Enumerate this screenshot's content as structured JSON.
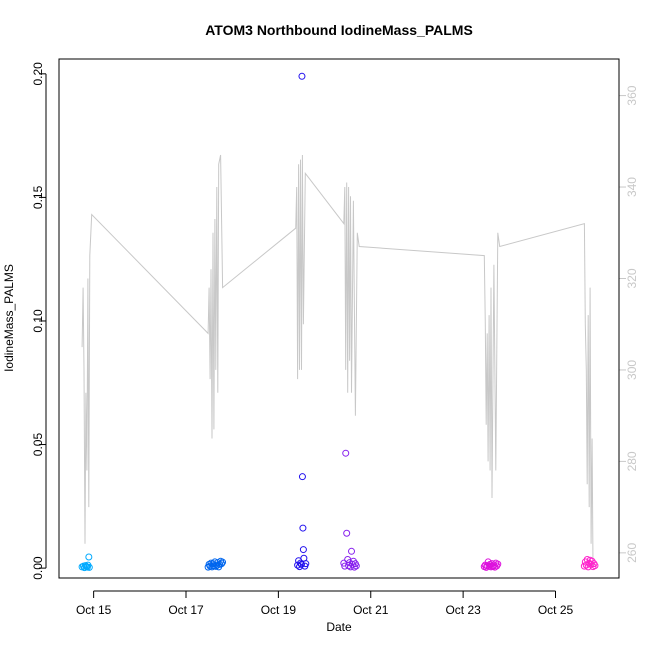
{
  "chart_data": {
    "type": "scatter",
    "title": "ATOM3 Northbound IodineMass_PALMS",
    "xlabel": "Date",
    "ylabel": "IodineMass_PALMS",
    "xlim": [
      "2017-10-14T06:00",
      "2017-10-26T09:00"
    ],
    "ylim": [
      -0.004,
      0.206
    ],
    "y2lim": [
      254.5,
      368
    ],
    "x_ticks": [
      {
        "date": "2017-10-15T00:00",
        "label": "Oct 15"
      },
      {
        "date": "2017-10-17T00:00",
        "label": "Oct 17"
      },
      {
        "date": "2017-10-19T00:00",
        "label": "Oct 19"
      },
      {
        "date": "2017-10-21T00:00",
        "label": "Oct 21"
      },
      {
        "date": "2017-10-23T00:00",
        "label": "Oct 23"
      },
      {
        "date": "2017-10-25T00:00",
        "label": "Oct 25"
      }
    ],
    "y_ticks": [
      {
        "value": 0.0,
        "label": "0.00"
      },
      {
        "value": 0.05,
        "label": "0.05"
      },
      {
        "value": 0.1,
        "label": "0.10"
      },
      {
        "value": 0.15,
        "label": "0.15"
      },
      {
        "value": 0.2,
        "label": "0.20"
      }
    ],
    "y2_ticks": [
      {
        "value": 260,
        "label": "260"
      },
      {
        "value": 280,
        "label": "280"
      },
      {
        "value": 300,
        "label": "300"
      },
      {
        "value": 320,
        "label": "320"
      },
      {
        "value": 340,
        "label": "340"
      },
      {
        "value": 360,
        "label": "360"
      }
    ],
    "line_series": {
      "axis": "right",
      "color": "#c8c8c8",
      "points": [
        [
          "2017-10-14T18:00",
          305
        ],
        [
          "2017-10-14T18:30",
          318
        ],
        [
          "2017-10-14T19:00",
          300
        ],
        [
          "2017-10-14T19:30",
          262
        ],
        [
          "2017-10-14T20:00",
          295
        ],
        [
          "2017-10-14T20:30",
          278
        ],
        [
          "2017-10-14T21:00",
          320
        ],
        [
          "2017-10-14T21:30",
          270
        ],
        [
          "2017-10-14T22:00",
          325
        ],
        [
          "2017-10-14T23:00",
          334
        ],
        [
          "2017-10-17T11:30",
          308
        ],
        [
          "2017-10-17T12:00",
          318
        ],
        [
          "2017-10-17T12:30",
          298
        ],
        [
          "2017-10-17T13:00",
          322
        ],
        [
          "2017-10-17T13:30",
          285
        ],
        [
          "2017-10-17T14:00",
          330
        ],
        [
          "2017-10-17T14:30",
          287
        ],
        [
          "2017-10-17T15:00",
          333
        ],
        [
          "2017-10-17T15:30",
          300
        ],
        [
          "2017-10-17T16:00",
          340
        ],
        [
          "2017-10-17T16:30",
          295
        ],
        [
          "2017-10-17T17:00",
          345
        ],
        [
          "2017-10-17T18:00",
          347
        ],
        [
          "2017-10-17T19:00",
          318
        ],
        [
          "2017-10-19T09:00",
          331
        ],
        [
          "2017-10-19T09:30",
          340
        ],
        [
          "2017-10-19T10:00",
          298
        ],
        [
          "2017-10-19T10:30",
          345
        ],
        [
          "2017-10-19T11:00",
          300
        ],
        [
          "2017-10-19T11:30",
          346
        ],
        [
          "2017-10-19T12:00",
          300
        ],
        [
          "2017-10-19T12:30",
          347
        ],
        [
          "2017-10-19T13:00",
          310
        ],
        [
          "2017-10-19T14:00",
          343
        ],
        [
          "2017-10-20T10:00",
          332
        ],
        [
          "2017-10-20T10:30",
          340
        ],
        [
          "2017-10-20T11:00",
          300
        ],
        [
          "2017-10-20T11:30",
          341
        ],
        [
          "2017-10-20T12:00",
          295
        ],
        [
          "2017-10-20T12:30",
          340
        ],
        [
          "2017-10-20T13:00",
          302
        ],
        [
          "2017-10-20T13:30",
          338
        ],
        [
          "2017-10-20T14:00",
          295
        ],
        [
          "2017-10-20T15:00",
          337
        ],
        [
          "2017-10-20T16:00",
          290
        ],
        [
          "2017-10-20T17:00",
          330
        ],
        [
          "2017-10-20T18:00",
          327
        ],
        [
          "2017-10-23T11:00",
          325
        ],
        [
          "2017-10-23T11:30",
          310
        ],
        [
          "2017-10-23T12:00",
          288
        ],
        [
          "2017-10-23T12:30",
          308
        ],
        [
          "2017-10-23T13:00",
          280
        ],
        [
          "2017-10-23T13:30",
          312
        ],
        [
          "2017-10-23T14:00",
          278
        ],
        [
          "2017-10-23T14:30",
          318
        ],
        [
          "2017-10-23T15:00",
          272
        ],
        [
          "2017-10-23T16:00",
          323
        ],
        [
          "2017-10-23T17:00",
          278
        ],
        [
          "2017-10-23T18:00",
          330
        ],
        [
          "2017-10-23T19:00",
          327
        ],
        [
          "2017-10-25T15:00",
          332
        ],
        [
          "2017-10-25T15:30",
          310
        ],
        [
          "2017-10-25T16:00",
          300
        ],
        [
          "2017-10-25T16:30",
          275
        ],
        [
          "2017-10-25T17:00",
          312
        ],
        [
          "2017-10-25T17:30",
          270
        ],
        [
          "2017-10-25T18:00",
          318
        ],
        [
          "2017-10-25T18:30",
          262
        ],
        [
          "2017-10-25T19:00",
          285
        ],
        [
          "2017-10-25T19:30",
          257
        ]
      ]
    },
    "series": [
      {
        "color": "#00aaff",
        "points": [
          [
            "2017-10-14T18:00",
            0.0005
          ],
          [
            "2017-10-14T18:45",
            0.0008
          ],
          [
            "2017-10-14T19:15",
            0.0002
          ],
          [
            "2017-10-14T19:45",
            0.001
          ],
          [
            "2017-10-14T20:15",
            0.0006
          ],
          [
            "2017-10-14T20:45",
            0.0004
          ],
          [
            "2017-10-14T21:00",
            0.0012
          ],
          [
            "2017-10-14T21:30",
            0.0045
          ],
          [
            "2017-10-14T21:45",
            0.0003
          ]
        ]
      },
      {
        "color": "#0066ee",
        "points": [
          [
            "2017-10-17T11:30",
            0.0004
          ],
          [
            "2017-10-17T12:00",
            0.0015
          ],
          [
            "2017-10-17T12:30",
            0.0008
          ],
          [
            "2017-10-17T13:00",
            0.002
          ],
          [
            "2017-10-17T13:30",
            0.0005
          ],
          [
            "2017-10-17T14:00",
            0.0018
          ],
          [
            "2017-10-17T14:30",
            0.0009
          ],
          [
            "2017-10-17T15:00",
            0.0025
          ],
          [
            "2017-10-17T15:30",
            0.0007
          ],
          [
            "2017-10-17T16:00",
            0.0012
          ],
          [
            "2017-10-17T16:30",
            0.0022
          ],
          [
            "2017-10-17T17:00",
            0.0005
          ],
          [
            "2017-10-17T17:30",
            0.0015
          ],
          [
            "2017-10-17T18:00",
            0.0028
          ],
          [
            "2017-10-17T18:30",
            0.0018
          ],
          [
            "2017-10-17T19:00",
            0.0024
          ]
        ]
      },
      {
        "color": "#2211ee",
        "points": [
          [
            "2017-10-19T10:00",
            0.0012
          ],
          [
            "2017-10-19T10:30",
            0.003
          ],
          [
            "2017-10-19T11:00",
            0.0006
          ],
          [
            "2017-10-19T11:30",
            0.002
          ],
          [
            "2017-10-19T12:00",
            0.0015
          ],
          [
            "2017-10-19T12:15",
            0.199
          ],
          [
            "2017-10-19T12:30",
            0.037
          ],
          [
            "2017-10-19T12:45",
            0.0162
          ],
          [
            "2017-10-19T13:00",
            0.0075
          ],
          [
            "2017-10-19T13:15",
            0.004
          ],
          [
            "2017-10-19T13:45",
            0.0008
          ],
          [
            "2017-10-19T14:15",
            0.0018
          ]
        ]
      },
      {
        "color": "#8822ee",
        "points": [
          [
            "2017-10-20T10:00",
            0.002
          ],
          [
            "2017-10-20T10:30",
            0.0008
          ],
          [
            "2017-10-20T11:00",
            0.0465
          ],
          [
            "2017-10-20T11:30",
            0.0141
          ],
          [
            "2017-10-20T12:00",
            0.0035
          ],
          [
            "2017-10-20T12:30",
            0.001
          ],
          [
            "2017-10-20T13:00",
            0.0022
          ],
          [
            "2017-10-20T13:30",
            0.0005
          ],
          [
            "2017-10-20T14:00",
            0.0068
          ],
          [
            "2017-10-20T14:30",
            0.0015
          ],
          [
            "2017-10-20T15:00",
            0.0028
          ],
          [
            "2017-10-20T15:30",
            0.0004
          ],
          [
            "2017-10-20T16:00",
            0.0018
          ],
          [
            "2017-10-20T16:30",
            0.0009
          ]
        ]
      },
      {
        "color": "#dd11dd",
        "points": [
          [
            "2017-10-23T11:00",
            0.0006
          ],
          [
            "2017-10-23T11:30",
            0.0012
          ],
          [
            "2017-10-23T12:00",
            0.0003
          ],
          [
            "2017-10-23T12:30",
            0.0009
          ],
          [
            "2017-10-23T13:00",
            0.0025
          ],
          [
            "2017-10-23T13:30",
            0.0008
          ],
          [
            "2017-10-23T14:00",
            0.0015
          ],
          [
            "2017-10-23T14:30",
            0.0005
          ],
          [
            "2017-10-23T15:00",
            0.0018
          ],
          [
            "2017-10-23T15:30",
            0.0007
          ],
          [
            "2017-10-23T16:00",
            0.0012
          ],
          [
            "2017-10-23T16:30",
            0.0004
          ],
          [
            "2017-10-23T17:00",
            0.002
          ],
          [
            "2017-10-23T17:30",
            0.0009
          ],
          [
            "2017-10-23T18:00",
            0.0016
          ]
        ]
      },
      {
        "color": "#ff22cc",
        "points": [
          [
            "2017-10-25T15:00",
            0.0008
          ],
          [
            "2017-10-25T15:30",
            0.0025
          ],
          [
            "2017-10-25T16:00",
            0.0012
          ],
          [
            "2017-10-25T16:30",
            0.0035
          ],
          [
            "2017-10-25T17:00",
            0.0005
          ],
          [
            "2017-10-25T17:30",
            0.002
          ],
          [
            "2017-10-25T18:00",
            0.0032
          ],
          [
            "2017-10-25T18:30",
            0.0015
          ],
          [
            "2017-10-25T19:00",
            0.0028
          ],
          [
            "2017-10-25T19:30",
            0.0006
          ],
          [
            "2017-10-25T20:00",
            0.0018
          ],
          [
            "2017-10-25T20:30",
            0.001
          ]
        ]
      }
    ]
  }
}
